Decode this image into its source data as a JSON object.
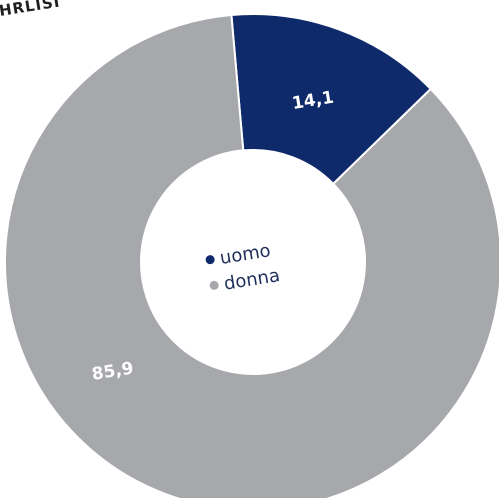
{
  "header": {
    "cut_title": "HRLISI"
  },
  "chart_data": {
    "type": "pie",
    "categories": [
      "uomo",
      "donna"
    ],
    "values": [
      14.1,
      85.9
    ],
    "value_labels": [
      "14,1",
      "85,9"
    ],
    "colors": [
      "#0f2a6b",
      "#a7a8ab"
    ],
    "donut": true,
    "legend": {
      "placement": "center",
      "entries": [
        "uomo",
        "donna"
      ]
    }
  }
}
